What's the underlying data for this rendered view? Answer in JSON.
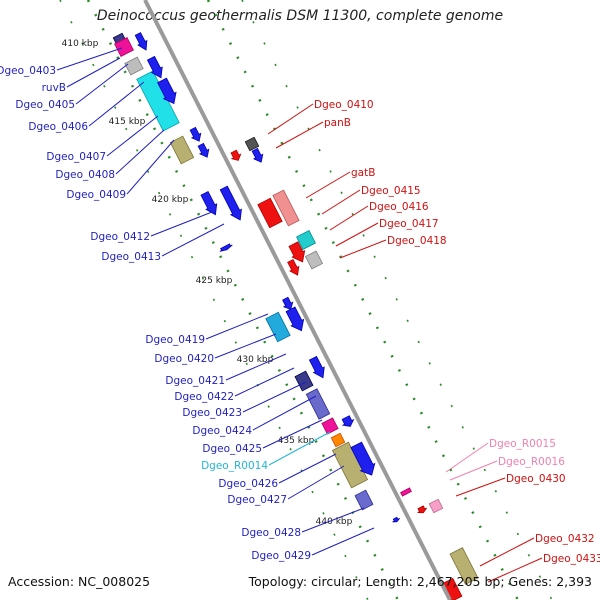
{
  "title": "Deinococcus geothermalis DSM 11300, complete genome",
  "footer": {
    "accession": "Accession: NC_008025",
    "topology": "Topology: circular; Length: 2,467,205 bp; Genes: 2,393"
  },
  "colors": {
    "backbone": "#9a9a9a",
    "tick": "#2a8a2a",
    "label_left": "#1f1fbf",
    "label_right": "#d01010",
    "label_rna_cyan": "#22b5d8",
    "label_rna_pink": "#f080b0"
  },
  "scale_labels": [
    "410 kbp",
    "415 kbp",
    "420 kbp",
    "425 kbp",
    "430 kbp",
    "435 kbp",
    "440 kbp"
  ],
  "left_labels": [
    {
      "text": "Dgeo_0403",
      "color": "#1f1fbf"
    },
    {
      "text": "ruvB",
      "color": "#1f1fbf"
    },
    {
      "text": "Dgeo_0405",
      "color": "#1f1fbf"
    },
    {
      "text": "Dgeo_0406",
      "color": "#1f1fbf"
    },
    {
      "text": "Dgeo_0407",
      "color": "#1f1fbf"
    },
    {
      "text": "Dgeo_0408",
      "color": "#1f1fbf"
    },
    {
      "text": "Dgeo_0409",
      "color": "#1f1fbf"
    },
    {
      "text": "Dgeo_0412",
      "color": "#1f1fbf"
    },
    {
      "text": "Dgeo_0413",
      "color": "#1f1fbf"
    },
    {
      "text": "Dgeo_0419",
      "color": "#1f1fbf"
    },
    {
      "text": "Dgeo_0420",
      "color": "#1f1fbf"
    },
    {
      "text": "Dgeo_0421",
      "color": "#1f1fbf"
    },
    {
      "text": "Dgeo_0422",
      "color": "#1f1fbf"
    },
    {
      "text": "Dgeo_0423",
      "color": "#1f1fbf"
    },
    {
      "text": "Dgeo_0424",
      "color": "#1f1fbf"
    },
    {
      "text": "Dgeo_0425",
      "color": "#1f1fbf"
    },
    {
      "text": "Dgeo_R0014",
      "color": "#22b5d8"
    },
    {
      "text": "Dgeo_0426",
      "color": "#1f1fbf"
    },
    {
      "text": "Dgeo_0427",
      "color": "#1f1fbf"
    },
    {
      "text": "Dgeo_0428",
      "color": "#1f1fbf"
    },
    {
      "text": "Dgeo_0429",
      "color": "#1f1fbf"
    }
  ],
  "right_labels": [
    {
      "text": "Dgeo_0410",
      "color": "#d01010"
    },
    {
      "text": "panB",
      "color": "#d01010"
    },
    {
      "text": "gatB",
      "color": "#d01010"
    },
    {
      "text": "Dgeo_0415",
      "color": "#d01010"
    },
    {
      "text": "Dgeo_0416",
      "color": "#d01010"
    },
    {
      "text": "Dgeo_0417",
      "color": "#d01010"
    },
    {
      "text": "Dgeo_0418",
      "color": "#d01010"
    },
    {
      "text": "Dgeo_R0015",
      "color": "#f080b0"
    },
    {
      "text": "Dgeo_R0016",
      "color": "#f080b0"
    },
    {
      "text": "Dgeo_0430",
      "color": "#d01010"
    },
    {
      "text": "Dgeo_0432",
      "color": "#d01010"
    },
    {
      "text": "Dgeo_0433",
      "color": "#d01010"
    }
  ],
  "features": [
    {
      "track": "fwd1",
      "color": "#3a3a8a",
      "arrow": false
    },
    {
      "track": "fwd1",
      "color": "#ee1199",
      "arrow": false
    },
    {
      "track": "fwd1",
      "color": "#bdbdbd",
      "arrow": false
    },
    {
      "track": "fwd1",
      "color": "#22e0e8",
      "arrow": false
    },
    {
      "track": "fwd1",
      "color": "#b8b070",
      "arrow": false
    },
    {
      "track": "fwd2",
      "color": "#2020ee",
      "arrow": true
    },
    {
      "track": "fwd2",
      "color": "#2020ee",
      "arrow": true
    },
    {
      "track": "fwd2",
      "color": "#2020ee",
      "arrow": true
    },
    {
      "track": "fwd2",
      "color": "#2020ee",
      "arrow": true
    },
    {
      "track": "fwd2",
      "color": "#2020ee",
      "arrow": true
    },
    {
      "track": "fwd2",
      "color": "#2020ee",
      "arrow": true
    },
    {
      "track": "fwd1",
      "color": "#2020ee",
      "arrow": true
    },
    {
      "track": "fwd1",
      "color": "#2020ee",
      "arrow": true
    },
    {
      "track": "fwd1",
      "color": "#22aadd",
      "arrow": false
    },
    {
      "track": "fwd2",
      "color": "#2020ee",
      "arrow": true
    },
    {
      "track": "fwd2",
      "color": "#2020ee",
      "arrow": true
    },
    {
      "track": "fwd2",
      "color": "#2020ee",
      "arrow": true
    },
    {
      "track": "fwd1",
      "color": "#3a3a8a",
      "arrow": false
    },
    {
      "track": "fwd1",
      "color": "#6a6acc",
      "arrow": false
    },
    {
      "track": "fwd2",
      "color": "#2020ee",
      "arrow": true
    },
    {
      "track": "fwd1",
      "color": "#ee1199",
      "arrow": false
    },
    {
      "track": "fwd1",
      "color": "#ff8800",
      "arrow": false
    },
    {
      "track": "fwd1",
      "color": "#22e0e8",
      "arrow": false
    },
    {
      "track": "fwd1",
      "color": "#b8b070",
      "arrow": false
    },
    {
      "track": "fwd2",
      "color": "#2020ee",
      "arrow": true
    },
    {
      "track": "fwd1",
      "color": "#6a6acc",
      "arrow": false
    },
    {
      "track": "fwd2",
      "color": "#2020ee",
      "arrow": true
    },
    {
      "track": "rev1",
      "color": "#555555",
      "arrow": false
    },
    {
      "track": "rev1",
      "color": "#ee1111",
      "arrow": true
    },
    {
      "track": "rev1",
      "color": "#2020ee",
      "arrow": true
    },
    {
      "track": "rev1",
      "color": "#ee1111",
      "arrow": false
    },
    {
      "track": "rev2",
      "color": "#f09090",
      "arrow": false
    },
    {
      "track": "rev1",
      "color": "#ee1111",
      "arrow": true
    },
    {
      "track": "rev2",
      "color": "#22cccc",
      "arrow": false
    },
    {
      "track": "rev2",
      "color": "#bdbdbd",
      "arrow": false
    },
    {
      "track": "rev1",
      "color": "#ee1111",
      "arrow": true
    },
    {
      "track": "rev2",
      "color": "#ee1199",
      "arrow": false
    },
    {
      "track": "rev2",
      "color": "#f8a0c8",
      "arrow": false
    },
    {
      "track": "rev1",
      "color": "#ee1111",
      "arrow": true
    },
    {
      "track": "rev1",
      "color": "#b8b070",
      "arrow": false
    },
    {
      "track": "rev1",
      "color": "#ee1111",
      "arrow": false
    }
  ]
}
